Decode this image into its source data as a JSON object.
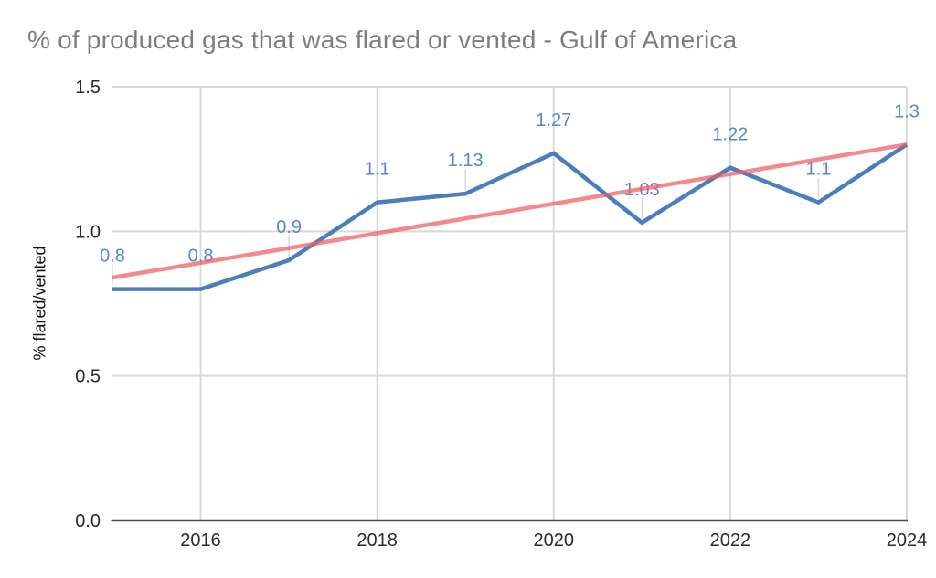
{
  "page": {
    "background": "#ffffff"
  },
  "chart_data": {
    "type": "line",
    "title": "% of produced gas that was flared or vented - Gulf of America",
    "title_color": "#7d7d7d",
    "xlabel": "",
    "ylabel": "% flared/vented",
    "x": [
      2015,
      2016,
      2017,
      2018,
      2019,
      2020,
      2021,
      2022,
      2023,
      2024
    ],
    "series": [
      {
        "name": "% flared/vented",
        "type": "line",
        "color": "#4a7ebd",
        "label_color": "#5b86ca",
        "values": [
          0.8,
          0.8,
          0.9,
          1.1,
          1.13,
          1.27,
          1.03,
          1.22,
          1.1,
          1.3
        ],
        "point_labels": [
          "0.8",
          "0.8",
          "0.9",
          "1.1",
          "1.13",
          "1.27",
          "1.03",
          "1.22",
          "1.1",
          "1.3"
        ]
      },
      {
        "name": "linear-trendline",
        "type": "trendline",
        "color": "rgba(241, 90, 96, 0.72)",
        "x": [
          2015,
          2024
        ],
        "values": [
          0.84,
          1.3
        ]
      }
    ],
    "xlim": [
      2015,
      2024
    ],
    "ylim": [
      0,
      1.5
    ],
    "yticks": [
      {
        "value": 0,
        "label": "0.0"
      },
      {
        "value": 0.5,
        "label": "0.5"
      },
      {
        "value": 1,
        "label": "1.0"
      },
      {
        "value": 1.5,
        "label": "1.5"
      }
    ],
    "xticks": [
      {
        "value": 2016,
        "label": "2016"
      },
      {
        "value": 2018,
        "label": "2018"
      },
      {
        "value": 2020,
        "label": "2020"
      },
      {
        "value": 2022,
        "label": "2022"
      },
      {
        "value": 2024,
        "label": "2024"
      }
    ],
    "grid": true,
    "legend": "none",
    "grid_color": "#d9d9d9",
    "leader_color": "#dcdcdc",
    "axis_color": "#4a4a4a",
    "tick_color": "#2b2b2b"
  }
}
